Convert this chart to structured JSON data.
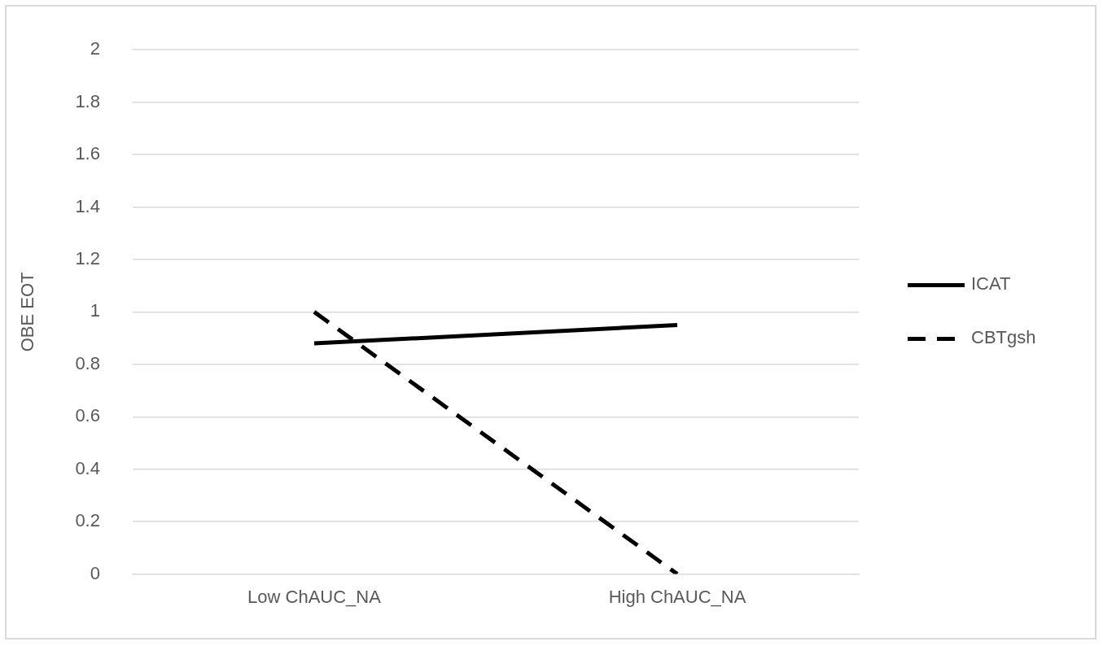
{
  "chart_data": {
    "type": "line",
    "ylabel": "OBE EOT",
    "categories": [
      "Low ChAUC_NA",
      "High ChAUC_NA"
    ],
    "series": [
      {
        "name": "ICAT",
        "color": "#000000",
        "values": [
          0.88,
          0.95
        ],
        "line_style": "solid"
      },
      {
        "name": "CBTgsh",
        "color": "#000000",
        "values": [
          1.0,
          0.0
        ],
        "line_style": "dashed"
      }
    ],
    "ylim": [
      0,
      2
    ],
    "yticks": [
      0,
      0.2,
      0.4,
      0.6,
      0.8,
      1,
      1.2,
      1.4,
      1.6,
      1.8,
      2
    ],
    "grid": "y",
    "legend": "right",
    "marker": "none"
  }
}
